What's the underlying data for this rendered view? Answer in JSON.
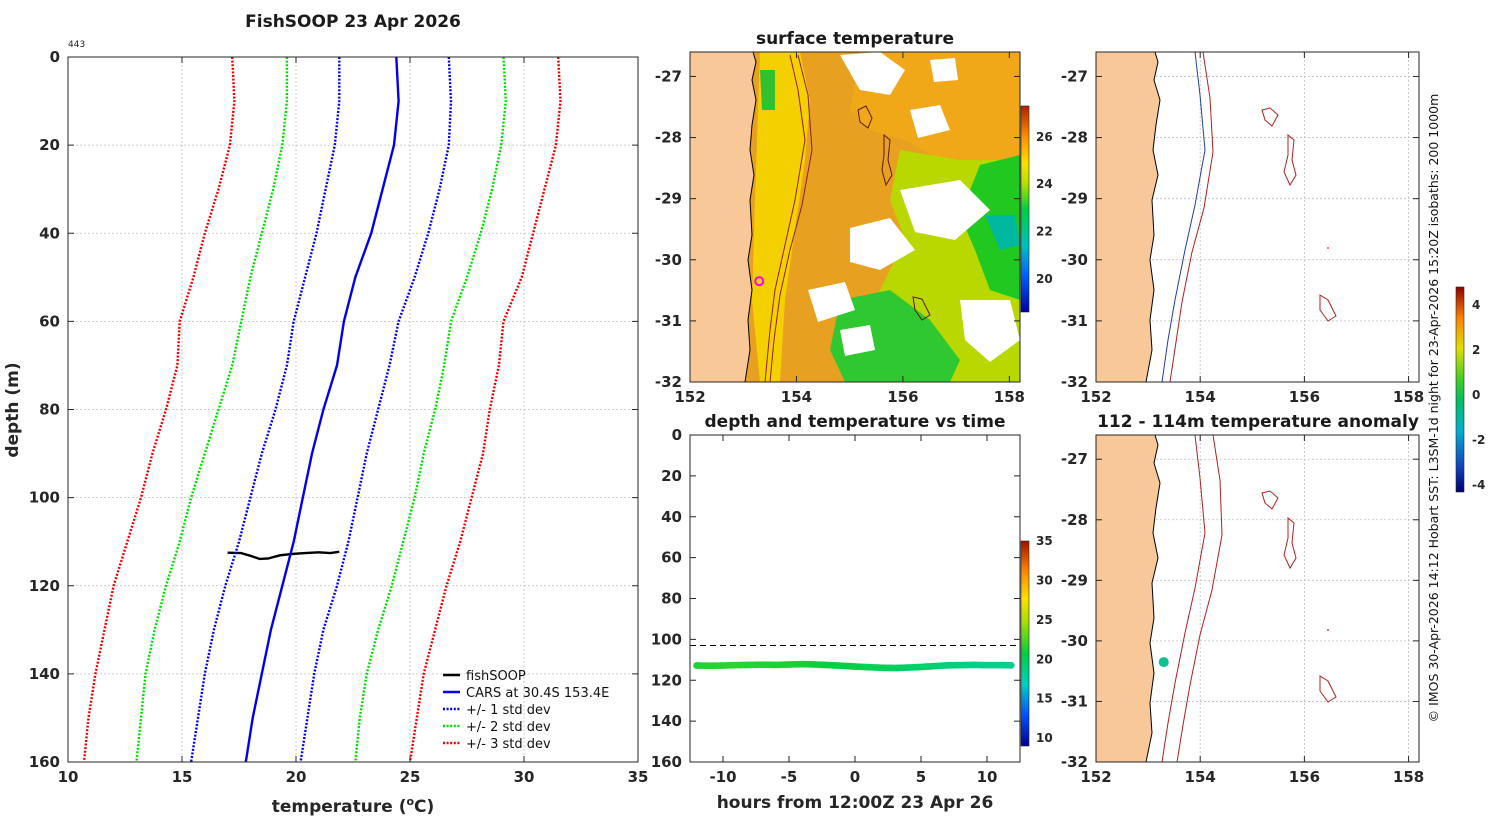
{
  "chart_data": [
    {
      "type": "line",
      "title": "FishSOOP 23 Apr 2026",
      "annotation": "443",
      "xlabel": "temperature (",
      "xlabel_super": "o",
      "xlabel_end": "C)",
      "ylabel": "depth (m)",
      "xlim": [
        10,
        35
      ],
      "ylim": [
        0,
        160
      ],
      "y_reversed": true,
      "xticks": [
        "10",
        "15",
        "20",
        "25",
        "30",
        "35"
      ],
      "yticks": [
        "0",
        "20",
        "40",
        "60",
        "80",
        "100",
        "120",
        "140",
        "160"
      ],
      "grid": true,
      "legend_position": "bottom-right",
      "series": [
        {
          "name": "fishSOOP",
          "color": "#000000",
          "style": "solid",
          "points": [
            [
              17.0,
              112.5
            ],
            [
              17.6,
              112.6
            ],
            [
              18.0,
              113.2
            ],
            [
              18.4,
              113.9
            ],
            [
              18.8,
              113.8
            ],
            [
              19.3,
              113.1
            ],
            [
              19.8,
              112.8
            ],
            [
              20.4,
              112.6
            ],
            [
              21.0,
              112.4
            ],
            [
              21.5,
              112.6
            ],
            [
              21.9,
              112.3
            ]
          ]
        },
        {
          "name": "CARS at 30.4S 153.4E",
          "color": "#0000ee",
          "style": "solid",
          "points": [
            [
              24.4,
              0
            ],
            [
              24.5,
              10
            ],
            [
              24.3,
              20
            ],
            [
              23.8,
              30
            ],
            [
              23.3,
              40
            ],
            [
              22.6,
              50
            ],
            [
              22.1,
              60
            ],
            [
              21.8,
              70
            ],
            [
              21.2,
              80
            ],
            [
              20.7,
              90
            ],
            [
              20.3,
              100
            ],
            [
              19.9,
              110
            ],
            [
              19.4,
              120
            ],
            [
              18.9,
              130
            ],
            [
              18.5,
              140
            ],
            [
              18.1,
              150
            ],
            [
              17.8,
              160
            ]
          ]
        },
        {
          "name": "+/- 1 std dev",
          "color": "#0000ee",
          "style": "dotted",
          "points": [
            [
              21.9,
              0
            ],
            [
              21.9,
              10
            ],
            [
              21.7,
              20
            ],
            [
              21.3,
              30
            ],
            [
              20.9,
              40
            ],
            [
              20.4,
              50
            ],
            [
              19.9,
              60
            ],
            [
              19.6,
              70
            ],
            [
              19.1,
              80
            ],
            [
              18.5,
              90
            ],
            [
              18.0,
              100
            ],
            [
              17.5,
              110
            ],
            [
              16.9,
              120
            ],
            [
              16.4,
              130
            ],
            [
              16.0,
              140
            ],
            [
              15.7,
              150
            ],
            [
              15.4,
              160
            ]
          ]
        },
        {
          "name": "+/- 1 std dev (upper)",
          "color": "#0000ee",
          "style": "dotted",
          "points": [
            [
              26.7,
              0
            ],
            [
              26.8,
              10
            ],
            [
              26.7,
              20
            ],
            [
              26.3,
              30
            ],
            [
              25.8,
              40
            ],
            [
              25.2,
              50
            ],
            [
              24.5,
              60
            ],
            [
              24.1,
              70
            ],
            [
              23.6,
              80
            ],
            [
              23.1,
              90
            ],
            [
              22.7,
              100
            ],
            [
              22.3,
              110
            ],
            [
              21.8,
              120
            ],
            [
              21.2,
              130
            ],
            [
              20.8,
              140
            ],
            [
              20.5,
              150
            ],
            [
              20.2,
              160
            ]
          ]
        },
        {
          "name": "+/- 2 std dev",
          "color": "#00dd00",
          "style": "dotted",
          "points": [
            [
              19.6,
              0
            ],
            [
              19.6,
              10
            ],
            [
              19.4,
              20
            ],
            [
              19.0,
              30
            ],
            [
              18.5,
              40
            ],
            [
              18.0,
              50
            ],
            [
              17.6,
              60
            ],
            [
              17.2,
              70
            ],
            [
              16.6,
              80
            ],
            [
              16.0,
              90
            ],
            [
              15.4,
              100
            ],
            [
              14.9,
              110
            ],
            [
              14.3,
              120
            ],
            [
              13.8,
              130
            ],
            [
              13.4,
              140
            ],
            [
              13.2,
              150
            ],
            [
              13.0,
              160
            ]
          ]
        },
        {
          "name": "+/- 2 std dev (upper)",
          "color": "#00dd00",
          "style": "dotted",
          "points": [
            [
              29.1,
              0
            ],
            [
              29.2,
              10
            ],
            [
              29.0,
              20
            ],
            [
              28.6,
              30
            ],
            [
              28.1,
              40
            ],
            [
              27.5,
              50
            ],
            [
              26.8,
              60
            ],
            [
              26.5,
              70
            ],
            [
              26.1,
              80
            ],
            [
              25.6,
              90
            ],
            [
              25.2,
              100
            ],
            [
              24.7,
              110
            ],
            [
              24.2,
              120
            ],
            [
              23.6,
              130
            ],
            [
              23.1,
              140
            ],
            [
              22.8,
              150
            ],
            [
              22.6,
              160
            ]
          ]
        },
        {
          "name": "+/- 3 std dev",
          "color": "#ee0000",
          "style": "dotted",
          "points": [
            [
              17.2,
              0
            ],
            [
              17.3,
              10
            ],
            [
              17.1,
              20
            ],
            [
              16.6,
              30
            ],
            [
              16.0,
              40
            ],
            [
              15.5,
              50
            ],
            [
              14.9,
              60
            ],
            [
              14.8,
              70
            ],
            [
              14.3,
              80
            ],
            [
              13.7,
              90
            ],
            [
              13.2,
              100
            ],
            [
              12.6,
              110
            ],
            [
              12.0,
              120
            ],
            [
              11.6,
              130
            ],
            [
              11.2,
              140
            ],
            [
              10.9,
              150
            ],
            [
              10.7,
              160
            ]
          ]
        },
        {
          "name": "+/- 3 std dev (upper)",
          "color": "#ee0000",
          "style": "dotted",
          "points": [
            [
              31.5,
              0
            ],
            [
              31.6,
              10
            ],
            [
              31.4,
              20
            ],
            [
              30.9,
              30
            ],
            [
              30.4,
              40
            ],
            [
              29.9,
              50
            ],
            [
              29.1,
              60
            ],
            [
              28.9,
              70
            ],
            [
              28.5,
              80
            ],
            [
              28.2,
              90
            ],
            [
              27.7,
              100
            ],
            [
              27.2,
              110
            ],
            [
              26.6,
              120
            ],
            [
              26.1,
              130
            ],
            [
              25.6,
              140
            ],
            [
              25.3,
              150
            ],
            [
              25.0,
              160
            ]
          ]
        }
      ],
      "legend": [
        {
          "label": "fishSOOP",
          "color": "#000000",
          "style": "solid"
        },
        {
          "label": "CARS at 30.4S 153.4E",
          "color": "#0000ee",
          "style": "solid"
        },
        {
          "label": "+/- 1 std dev",
          "color": "#0000ee",
          "style": "dotted"
        },
        {
          "label": "+/- 2 std dev",
          "color": "#00dd00",
          "style": "dotted"
        },
        {
          "label": "+/- 3 std dev",
          "color": "#ee0000",
          "style": "dotted"
        }
      ]
    },
    {
      "type": "heatmap",
      "title": "surface temperature",
      "xlim": [
        152,
        158.2
      ],
      "ylim": [
        -32,
        -26.6
      ],
      "xticks": [
        "152",
        "154",
        "156",
        "158"
      ],
      "yticks": [
        "-27",
        "-28",
        "-29",
        "-30",
        "-31",
        "-32"
      ],
      "colorbar": {
        "range": [
          18.6,
          27.3
        ],
        "ticks": [
          "20",
          "22",
          "24",
          "26"
        ]
      },
      "marker": {
        "lon": 153.3,
        "lat": -30.35,
        "color": "#ff00ff"
      }
    },
    {
      "type": "scatter",
      "title": "depth and temperature vs time",
      "xlabel": "hours from 12:00Z 23 Apr 26",
      "xlim": [
        -12.5,
        12.5
      ],
      "ylim": [
        0,
        160
      ],
      "y_reversed": true,
      "xticks": [
        "-10",
        "-5",
        "0",
        "5",
        "10"
      ],
      "yticks": [
        "0",
        "20",
        "40",
        "60",
        "80",
        "100",
        "120",
        "140",
        "160"
      ],
      "reference_depth": 103,
      "colorbar": {
        "range": [
          9,
          35
        ],
        "ticks": [
          "10",
          "15",
          "20",
          "25",
          "30",
          "35"
        ]
      },
      "hours": [
        -12,
        -11,
        -10,
        -9,
        -8,
        -7,
        -6,
        -5,
        -4,
        -3,
        -2,
        -1,
        0,
        1,
        2,
        3,
        4,
        5,
        6,
        7,
        8,
        9,
        10,
        11,
        12
      ],
      "depths": [
        112.8,
        112.9,
        112.8,
        112.6,
        112.5,
        112.4,
        112.5,
        112.3,
        112.1,
        112.3,
        112.6,
        112.9,
        113.3,
        113.6,
        113.9,
        114.0,
        113.8,
        113.5,
        113.1,
        112.7,
        112.6,
        112.5,
        112.6,
        112.6,
        112.7
      ],
      "temps": [
        21.4,
        21.5,
        21.6,
        21.7,
        21.6,
        21.5,
        21.4,
        21.3,
        21.2,
        21.0,
        20.8,
        20.6,
        20.4,
        20.2,
        20.0,
        19.8,
        19.6,
        19.4,
        19.2,
        19.0,
        18.8,
        18.6,
        18.5,
        18.4,
        18.3
      ]
    },
    {
      "type": "scatter",
      "title": "",
      "xlim": [
        152,
        158.2
      ],
      "ylim": [
        -32,
        -26.6
      ],
      "xticks": [
        "152",
        "154",
        "156",
        "158"
      ],
      "yticks": [
        "-27",
        "-28",
        "-29",
        "-30",
        "-31",
        "-32"
      ],
      "isobaths": [
        200,
        1000
      ]
    },
    {
      "type": "scatter",
      "title": "112 - 114m temperature anomaly",
      "xlim": [
        152,
        158.2
      ],
      "ylim": [
        -32,
        -26.6
      ],
      "xticks": [
        "152",
        "154",
        "156",
        "158"
      ],
      "yticks": [
        "-27",
        "-28",
        "-29",
        "-30",
        "-31",
        "-32"
      ],
      "point": {
        "lon": 153.3,
        "lat": -30.35,
        "color": "#10c090"
      },
      "colorbar": {
        "range": [
          -4.3,
          4.8
        ],
        "ticks": [
          "-4",
          "-2",
          "0",
          "2",
          "4"
        ]
      }
    }
  ],
  "side_note": "© IMOS 30-Apr-2026 14:12 Hobart SST: L3SM-1d night for 23-Apr-2026 15:20Z isobaths: 200  1000m"
}
